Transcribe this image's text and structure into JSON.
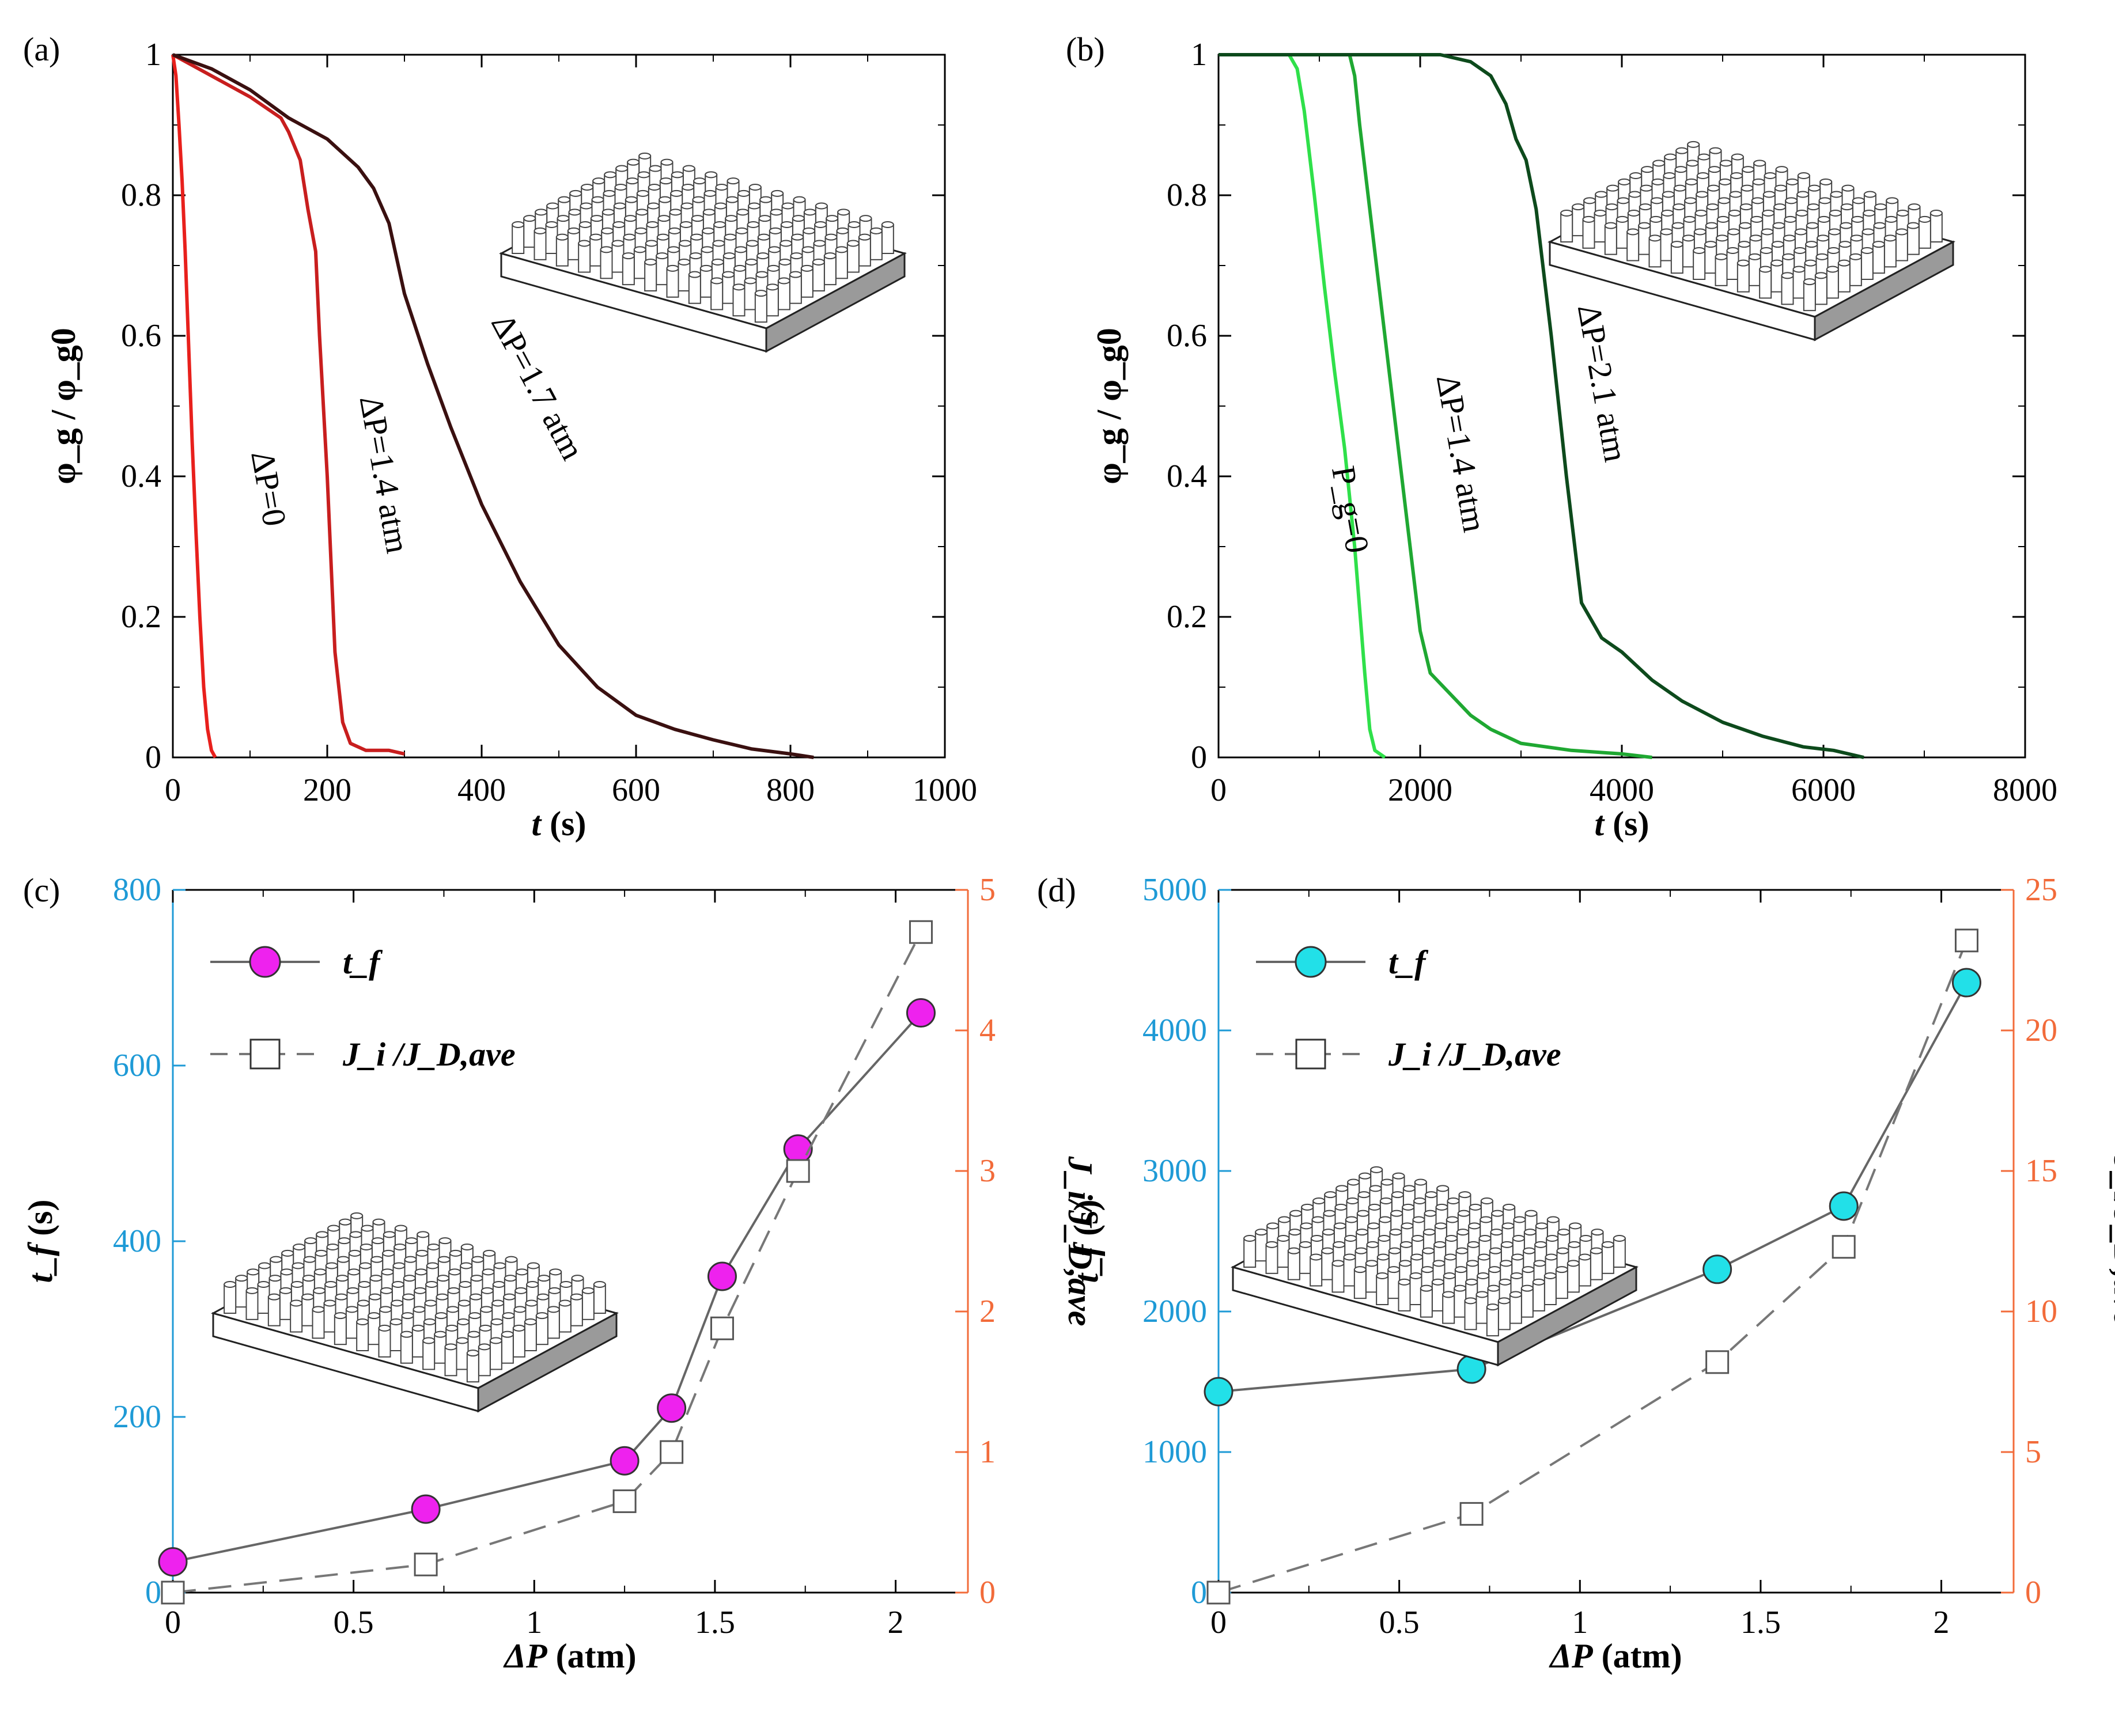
{
  "colors": {
    "axis": "#000000",
    "tick_left_cd": "#1e9ad6",
    "tick_right_cd": "#f26b3a",
    "red_dp0": "#e8201c",
    "red_dp14": "#c81e1e",
    "red_dp17": "#3a1010",
    "green_pg0": "#2fe04a",
    "green_dp14": "#1fa832",
    "green_dp21": "#0d4a1c",
    "magenta": "#ee22ee",
    "cyan": "#22e0e8",
    "grey_line": "#666666",
    "open_square": "#555555"
  },
  "chart_data": [
    {
      "panel": "(a)",
      "type": "line",
      "xlabel_var": "t",
      "xlabel_unit": "(s)",
      "ylabel": "φ_g / φ_g0",
      "xlim": [
        0,
        1000
      ],
      "ylim": [
        0,
        1
      ],
      "xticks": [
        0,
        200,
        400,
        600,
        800,
        1000
      ],
      "xticklabels": [
        "0",
        "200",
        "400",
        "600",
        "800",
        "1000"
      ],
      "yticks": [
        0,
        0.2,
        0.4,
        0.6,
        0.8,
        1
      ],
      "yticklabels": [
        "0",
        "0.2",
        "0.4",
        "0.6",
        "0.8",
        "1"
      ],
      "inset": "pillar-array",
      "series": [
        {
          "name": "ΔP=0",
          "label": "ΔP=0",
          "color": "red_dp0",
          "x": [
            0,
            4,
            8,
            12,
            16,
            20,
            25,
            30,
            35,
            40,
            45,
            50,
            55
          ],
          "y": [
            1,
            0.97,
            0.9,
            0.82,
            0.72,
            0.6,
            0.45,
            0.32,
            0.2,
            0.1,
            0.04,
            0.01,
            0
          ]
        },
        {
          "name": "ΔP=1.4 atm",
          "label": "ΔP=1.4 atm",
          "color": "red_dp14",
          "x": [
            0,
            50,
            100,
            140,
            150,
            165,
            175,
            185,
            190,
            200,
            210,
            220,
            230,
            250,
            280,
            300
          ],
          "y": [
            1,
            0.97,
            0.94,
            0.91,
            0.89,
            0.85,
            0.78,
            0.72,
            0.6,
            0.4,
            0.15,
            0.05,
            0.02,
            0.01,
            0.01,
            0.005
          ]
        },
        {
          "name": "ΔP=1.7 atm",
          "label": "ΔP=1.7 atm",
          "color": "red_dp17",
          "x": [
            0,
            50,
            100,
            150,
            200,
            240,
            260,
            280,
            300,
            330,
            360,
            400,
            450,
            500,
            550,
            600,
            650,
            700,
            750,
            800,
            830
          ],
          "y": [
            1,
            0.98,
            0.95,
            0.91,
            0.88,
            0.84,
            0.81,
            0.76,
            0.66,
            0.56,
            0.47,
            0.36,
            0.25,
            0.16,
            0.1,
            0.06,
            0.04,
            0.025,
            0.012,
            0.005,
            0
          ]
        }
      ]
    },
    {
      "panel": "(b)",
      "type": "line",
      "xlabel_var": "t",
      "xlabel_unit": "(s)",
      "ylabel": "φ_g / φ_g0",
      "xlim": [
        0,
        8000
      ],
      "ylim": [
        0,
        1
      ],
      "xticks": [
        0,
        2000,
        4000,
        6000,
        8000
      ],
      "xticklabels": [
        "0",
        "2000",
        "4000",
        "6000",
        "8000"
      ],
      "yticks": [
        0,
        0.2,
        0.4,
        0.6,
        0.8,
        1
      ],
      "yticklabels": [
        "0",
        "0.2",
        "0.4",
        "0.6",
        "0.8",
        "1"
      ],
      "inset": "pillar-array",
      "series": [
        {
          "name": "P_g=0",
          "label": "P_g=0",
          "color": "green_pg0",
          "x": [
            0,
            700,
            780,
            850,
            950,
            1050,
            1150,
            1250,
            1350,
            1450,
            1500,
            1550,
            1650
          ],
          "y": [
            1,
            1,
            0.98,
            0.92,
            0.8,
            0.67,
            0.55,
            0.44,
            0.3,
            0.12,
            0.04,
            0.01,
            0
          ]
        },
        {
          "name": "ΔP=1.4 atm",
          "label": "ΔP=1.4 atm",
          "color": "green_dp14",
          "x": [
            0,
            1300,
            1350,
            1400,
            1500,
            1600,
            1700,
            1800,
            1900,
            2000,
            2100,
            2300,
            2500,
            2700,
            3000,
            3500,
            4000,
            4300
          ],
          "y": [
            1,
            1,
            0.97,
            0.9,
            0.78,
            0.66,
            0.54,
            0.42,
            0.3,
            0.18,
            0.12,
            0.09,
            0.06,
            0.04,
            0.02,
            0.01,
            0.005,
            0
          ]
        },
        {
          "name": "ΔP=2.1 atm",
          "label": "ΔP=2.1 atm",
          "color": "green_dp21",
          "x": [
            0,
            2200,
            2500,
            2700,
            2850,
            2950,
            3050,
            3150,
            3300,
            3450,
            3600,
            3800,
            4000,
            4300,
            4600,
            5000,
            5400,
            5800,
            6100,
            6400
          ],
          "y": [
            1,
            1,
            0.99,
            0.97,
            0.93,
            0.88,
            0.85,
            0.78,
            0.6,
            0.4,
            0.22,
            0.17,
            0.15,
            0.11,
            0.08,
            0.05,
            0.03,
            0.015,
            0.01,
            0
          ]
        }
      ]
    },
    {
      "panel": "(c)",
      "type": "line",
      "xlabel_var": "ΔP",
      "xlabel_unit": "(atm)",
      "ylabel_left_var": "t_f",
      "ylabel_left_unit": "(s)",
      "ylabel_right": "J_i/J_D,ave",
      "xlim": [
        0,
        2.2
      ],
      "ylim_left": [
        0,
        800
      ],
      "ylim_right": [
        0,
        5
      ],
      "xticks": [
        0,
        0.5,
        1,
        1.5,
        2
      ],
      "xticklabels": [
        "0",
        "0.5",
        "1",
        "1.5",
        "2"
      ],
      "yticks_left": [
        0,
        200,
        400,
        600,
        800
      ],
      "yticklabels_left": [
        "0",
        "200",
        "400",
        "600",
        "800"
      ],
      "yticks_right": [
        0,
        1,
        2,
        3,
        4,
        5
      ],
      "yticklabels_right": [
        "0",
        "1",
        "2",
        "3",
        "4",
        "5"
      ],
      "inset": "pillar-array",
      "legend": {
        "placement": "top-left",
        "entries": [
          "t_f",
          "J_i /J_D,ave"
        ]
      },
      "series": [
        {
          "name": "t_f",
          "axis": "left",
          "marker": "circle",
          "fill": "magenta",
          "line": "solid",
          "x": [
            0,
            0.7,
            1.25,
            1.38,
            1.52,
            1.73,
            2.07
          ],
          "y": [
            35,
            95,
            150,
            210,
            360,
            505,
            660
          ]
        },
        {
          "name": "J_i/J_D,ave",
          "axis": "right",
          "marker": "square",
          "fill": "none",
          "line": "dashed",
          "x": [
            0,
            0.7,
            1.25,
            1.38,
            1.52,
            1.73,
            2.07
          ],
          "y": [
            0,
            0.2,
            0.65,
            1.0,
            1.88,
            3.0,
            4.7
          ]
        }
      ]
    },
    {
      "panel": "(d)",
      "type": "line",
      "xlabel_var": "ΔP",
      "xlabel_unit": "(atm)",
      "ylabel_left_var": "t_f",
      "ylabel_left_unit": "(s)",
      "ylabel_right": "J_i/J_D,ave",
      "xlim": [
        0,
        2.2
      ],
      "ylim_left": [
        0,
        5000
      ],
      "ylim_right": [
        0,
        25
      ],
      "xticks": [
        0,
        0.5,
        1,
        1.5,
        2
      ],
      "xticklabels": [
        "0",
        "0.5",
        "1",
        "1.5",
        "2"
      ],
      "yticks_left": [
        0,
        1000,
        2000,
        3000,
        4000,
        5000
      ],
      "yticklabels_left": [
        "0",
        "1000",
        "2000",
        "3000",
        "4000",
        "5000"
      ],
      "yticks_right": [
        0,
        5,
        10,
        15,
        20,
        25
      ],
      "yticklabels_right": [
        "0",
        "5",
        "10",
        "15",
        "20",
        "25"
      ],
      "inset": "pillar-array",
      "legend": {
        "placement": "top-left",
        "entries": [
          "t_f",
          "J_i /J_D,ave"
        ]
      },
      "series": [
        {
          "name": "t_f",
          "axis": "left",
          "marker": "circle",
          "fill": "cyan",
          "line": "solid",
          "x": [
            0,
            0.7,
            1.38,
            1.73,
            2.07
          ],
          "y": [
            1430,
            1590,
            2300,
            2750,
            4340
          ]
        },
        {
          "name": "J_i/J_D,ave",
          "axis": "right",
          "marker": "square",
          "fill": "none",
          "line": "dashed",
          "x": [
            0,
            0.7,
            1.38,
            1.73,
            2.07
          ],
          "y": [
            0,
            2.8,
            8.2,
            12.3,
            23.2
          ]
        }
      ]
    }
  ]
}
